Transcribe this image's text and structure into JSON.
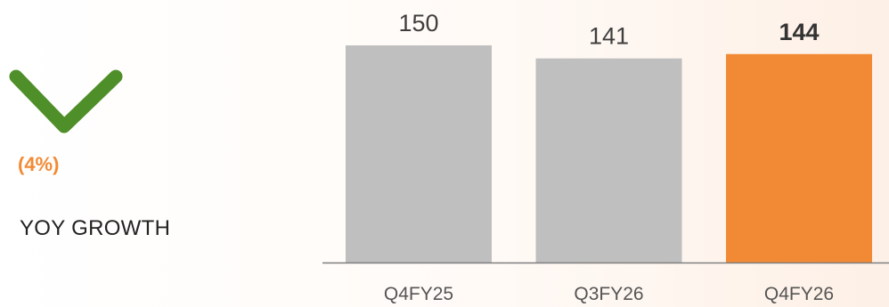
{
  "growth": {
    "value_text": "(4%)",
    "label": "YOY GROWTH",
    "indicator_icon": "chevron-down-icon",
    "indicator_color": "#4f8f2a"
  },
  "colors": {
    "bar_default": "#bfbfbf",
    "bar_highlight": "#f28a35",
    "axis": "#7f7f7f"
  },
  "chart_data": {
    "type": "bar",
    "categories": [
      "Q4FY25",
      "Q3FY26",
      "Q4FY26"
    ],
    "values": [
      150,
      141,
      144
    ],
    "value_labels": [
      "150",
      "141",
      "144"
    ],
    "highlight_index": 2,
    "title": "",
    "xlabel": "",
    "ylabel": "",
    "ylim": [
      0,
      150
    ],
    "grid": false,
    "legend": "none"
  }
}
